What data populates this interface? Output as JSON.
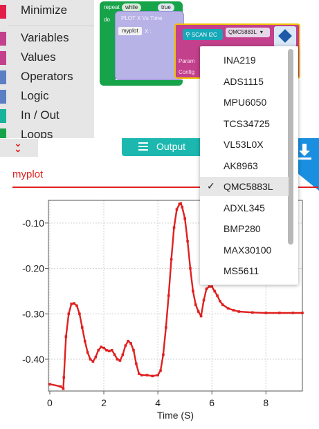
{
  "menu": {
    "items": [
      {
        "label": "Minimize",
        "color": "#e11d48"
      },
      {
        "label": "Variables",
        "color": "#c2408c"
      },
      {
        "label": "Values",
        "color": "#c2408c"
      },
      {
        "label": "Operators",
        "color": "#5b7fc2"
      },
      {
        "label": "Logic",
        "color": "#5b7fc2"
      },
      {
        "label": "In / Out",
        "color": "#17b39a"
      },
      {
        "label": "Loops",
        "color": "#16a34a"
      }
    ]
  },
  "workspace": {
    "repeat_label": "repeat",
    "repeat_mode": "while",
    "repeat_cond": "true",
    "do_label": "do",
    "plot_label": "PLOT X Vs Time",
    "plot_var": "myplot",
    "plot_x": "X :",
    "scan_button": "SCAN I2C",
    "sensor_select": "QMC5883L",
    "param_label": "Param",
    "config_label": "Config"
  },
  "output": {
    "tab_label": "Output",
    "plot_title": "myplot"
  },
  "sensor_dropdown": {
    "selected": "QMC5883L",
    "options": [
      "INA219",
      "ADS1115",
      "MPU6050",
      "TCS34725",
      "VL53L0X",
      "AK8963",
      "QMC5883L",
      "ADXL345",
      "BMP280",
      "MAX30100",
      "MS5611"
    ]
  },
  "colors": {
    "accent_teal": "#1cb8b0",
    "plot_red": "#e02020",
    "download_blue": "#1a8fe0"
  },
  "chart_data": {
    "type": "line",
    "title": "myplot",
    "xlabel": "Time (S)",
    "ylabel": "",
    "xlim": [
      -0.05,
      9.35
    ],
    "ylim": [
      -0.47,
      -0.05
    ],
    "xticks": [
      0,
      2,
      4,
      6,
      8
    ],
    "yticks": [
      -0.1,
      -0.2,
      -0.3,
      -0.4
    ],
    "ytick_labels": [
      "-0.10",
      "-0.20",
      "-0.30",
      "-0.40"
    ],
    "grid": true,
    "series": [
      {
        "color": "#e02020",
        "x": [
          0,
          0.4,
          0.5,
          0.52,
          0.6,
          0.7,
          0.8,
          0.9,
          1.0,
          1.1,
          1.2,
          1.3,
          1.4,
          1.5,
          1.6,
          1.7,
          1.8,
          1.9,
          2.0,
          2.1,
          2.2,
          2.3,
          2.4,
          2.5,
          2.6,
          2.7,
          2.8,
          2.9,
          3.0,
          3.1,
          3.2,
          3.3,
          3.4,
          3.6,
          3.8,
          4.0,
          4.1,
          4.2,
          4.3,
          4.4,
          4.5,
          4.6,
          4.7,
          4.8,
          4.85,
          4.9,
          5.0,
          5.1,
          5.2,
          5.3,
          5.4,
          5.5,
          5.6,
          5.7,
          5.8,
          5.9,
          6.0,
          6.1,
          6.2,
          6.3,
          6.4,
          6.6,
          6.8,
          7.0,
          7.5,
          8.0,
          8.5,
          9.0,
          9.35
        ],
        "y": [
          -0.455,
          -0.46,
          -0.465,
          -0.44,
          -0.35,
          -0.3,
          -0.278,
          -0.277,
          -0.282,
          -0.3,
          -0.33,
          -0.36,
          -0.385,
          -0.4,
          -0.405,
          -0.395,
          -0.38,
          -0.373,
          -0.375,
          -0.38,
          -0.382,
          -0.38,
          -0.39,
          -0.4,
          -0.403,
          -0.39,
          -0.37,
          -0.36,
          -0.365,
          -0.38,
          -0.41,
          -0.432,
          -0.435,
          -0.435,
          -0.437,
          -0.435,
          -0.425,
          -0.39,
          -0.33,
          -0.26,
          -0.18,
          -0.11,
          -0.07,
          -0.058,
          -0.057,
          -0.065,
          -0.09,
          -0.14,
          -0.2,
          -0.25,
          -0.28,
          -0.295,
          -0.305,
          -0.27,
          -0.245,
          -0.24,
          -0.24,
          -0.25,
          -0.26,
          -0.272,
          -0.28,
          -0.288,
          -0.292,
          -0.295,
          -0.297,
          -0.298,
          -0.298,
          -0.298,
          -0.298
        ]
      }
    ]
  }
}
